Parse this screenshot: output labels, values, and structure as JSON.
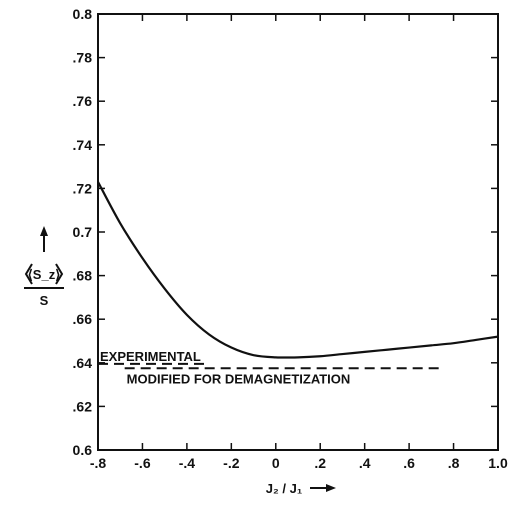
{
  "chart_data": {
    "type": "line",
    "title": "",
    "xlabel": "J₂ / J₁",
    "ylabel_top": "⟨S_z⟩",
    "ylabel_bottom": "S",
    "xlim": [
      -0.8,
      1.0
    ],
    "ylim": [
      0.6,
      0.8
    ],
    "x_ticks": [
      -0.8,
      -0.6,
      -0.4,
      -0.2,
      0,
      0.2,
      0.4,
      0.6,
      0.8,
      1.0
    ],
    "x_tick_labels": [
      "-.8",
      "-.6",
      "-.4",
      "-.2",
      "0",
      ".2",
      ".4",
      ".6",
      ".8",
      "1.0"
    ],
    "y_ticks": [
      0.6,
      0.62,
      0.64,
      0.66,
      0.68,
      0.7,
      0.72,
      0.74,
      0.76,
      0.78,
      0.8
    ],
    "y_tick_labels": [
      "0.6",
      ".62",
      ".64",
      ".66",
      ".68",
      "0.7",
      ".72",
      ".74",
      ".76",
      ".78",
      "0.8"
    ],
    "grid": false,
    "series": [
      {
        "x": [
          -0.8,
          -0.7,
          -0.6,
          -0.5,
          -0.4,
          -0.3,
          -0.2,
          -0.1,
          0.0,
          0.1,
          0.2,
          0.3,
          0.4,
          0.5,
          0.6,
          0.7,
          0.8,
          0.9,
          1.0
        ],
        "y": [
          0.723,
          0.704,
          0.688,
          0.674,
          0.662,
          0.653,
          0.647,
          0.6435,
          0.6425,
          0.6425,
          0.643,
          0.644,
          0.645,
          0.646,
          0.647,
          0.648,
          0.649,
          0.6505,
          0.652
        ]
      }
    ],
    "annotations": [
      {
        "text": "EXPERIMENTAL",
        "x_start": -0.8,
        "x_end": -0.3,
        "y": 0.6395
      },
      {
        "text": "MODIFIED FOR DEMAGNETIZATION",
        "x_start": -0.68,
        "x_end": 0.76,
        "y": 0.6375
      }
    ]
  }
}
